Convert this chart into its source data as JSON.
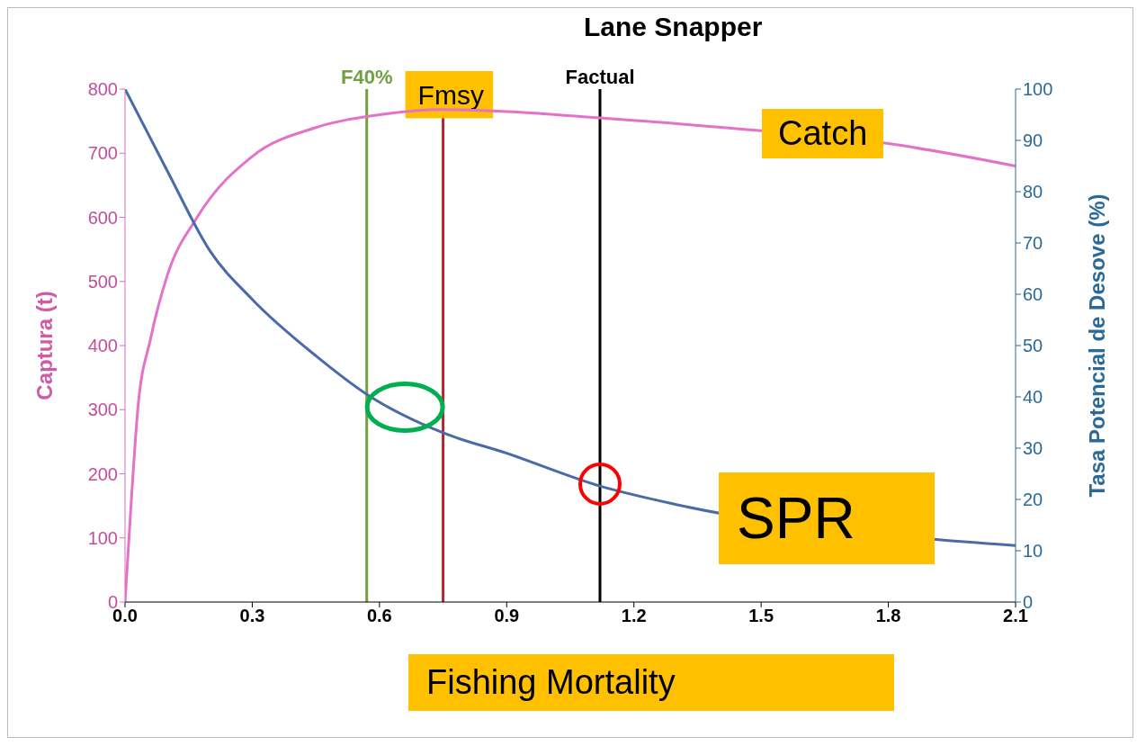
{
  "chart_data": {
    "type": "line",
    "title": "Lane Snapper",
    "xlabel": "Fishing Mortality",
    "ylabel": "Captura (t)",
    "y2label": "Tasa Potencial de Desove (%)",
    "xlim": [
      0,
      2.1
    ],
    "xticks": [
      {
        "value": 0,
        "label": "0.0"
      },
      0.3,
      0.6,
      0.9,
      {
        "value": 1.2,
        "label": "1.2"
      },
      1.5,
      1.8,
      2.1
    ],
    "ylim": [
      0,
      800
    ],
    "yticks": [
      0,
      100,
      200,
      300,
      400,
      500,
      600,
      700,
      800
    ],
    "y2lim": [
      0,
      100
    ],
    "y2ticks": [
      0,
      10,
      20,
      30,
      40,
      50,
      60,
      70,
      80,
      90,
      100
    ],
    "marker": "none",
    "line_style": "solid",
    "series": [
      {
        "name": "Catch",
        "color": "#e372c8",
        "x": [
          0,
          0.015,
          0.03,
          0.06,
          0.1,
          0.17,
          0.3,
          0.45,
          0.6,
          0.75,
          0.9,
          1.12,
          1.5,
          1.8,
          2.1
        ],
        "values": [
          0,
          160,
          300,
          410,
          510,
          600,
          695,
          740,
          760,
          768,
          765,
          755,
          735,
          715,
          680
        ]
      },
      {
        "name": "SPR",
        "color": "#4a6aa8",
        "axis": "y2",
        "x": [
          0,
          0.1,
          0.2,
          0.3,
          0.45,
          0.57,
          0.75,
          0.9,
          1.12,
          1.3,
          2.1
        ],
        "values": [
          100,
          84,
          68.5,
          59,
          48,
          40.5,
          33,
          29,
          22.6,
          19,
          11
        ]
      }
    ],
    "ref_lines": [
      {
        "axis": "x",
        "value": 0.57,
        "label": "F40%",
        "color": "#70a040"
      },
      {
        "axis": "x",
        "value": 0.75,
        "label": "Fmsy",
        "color": "#c0202a"
      },
      {
        "axis": "x",
        "value": 1.12,
        "label": "Factual",
        "color": "#000000"
      }
    ]
  }
}
